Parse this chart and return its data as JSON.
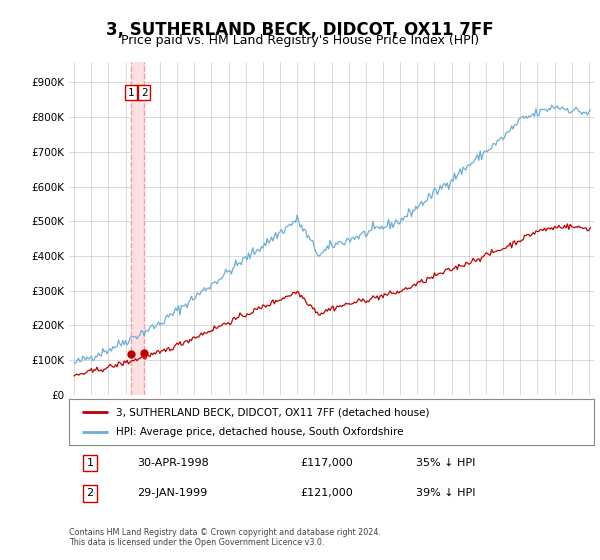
{
  "title": "3, SUTHERLAND BECK, DIDCOT, OX11 7FF",
  "subtitle": "Price paid vs. HM Land Registry's House Price Index (HPI)",
  "hpi_label": "HPI: Average price, detached house, South Oxfordshire",
  "property_label": "3, SUTHERLAND BECK, DIDCOT, OX11 7FF (detached house)",
  "legend_note": "Contains HM Land Registry data © Crown copyright and database right 2024.\nThis data is licensed under the Open Government Licence v3.0.",
  "transactions": [
    {
      "id": 1,
      "date": "30-APR-1998",
      "price": 117000,
      "pct": "35%",
      "dir": "↓"
    },
    {
      "id": 2,
      "date": "29-JAN-1999",
      "price": 121000,
      "pct": "39%",
      "dir": "↓"
    }
  ],
  "transaction_dates_decimal": [
    1998.33,
    1999.08
  ],
  "transaction_prices": [
    117000,
    121000
  ],
  "ylim": [
    0,
    960000
  ],
  "yticks": [
    0,
    100000,
    200000,
    300000,
    400000,
    500000,
    600000,
    700000,
    800000,
    900000
  ],
  "xlim_start": 1994.7,
  "xlim_end": 2025.3,
  "hpi_color": "#6baed6",
  "property_color": "#c00000",
  "vline_color": "#f4a0a0",
  "vspan_color": "#fde0e0",
  "background_color": "#ffffff",
  "grid_color": "#cccccc",
  "title_fontsize": 12,
  "subtitle_fontsize": 9
}
